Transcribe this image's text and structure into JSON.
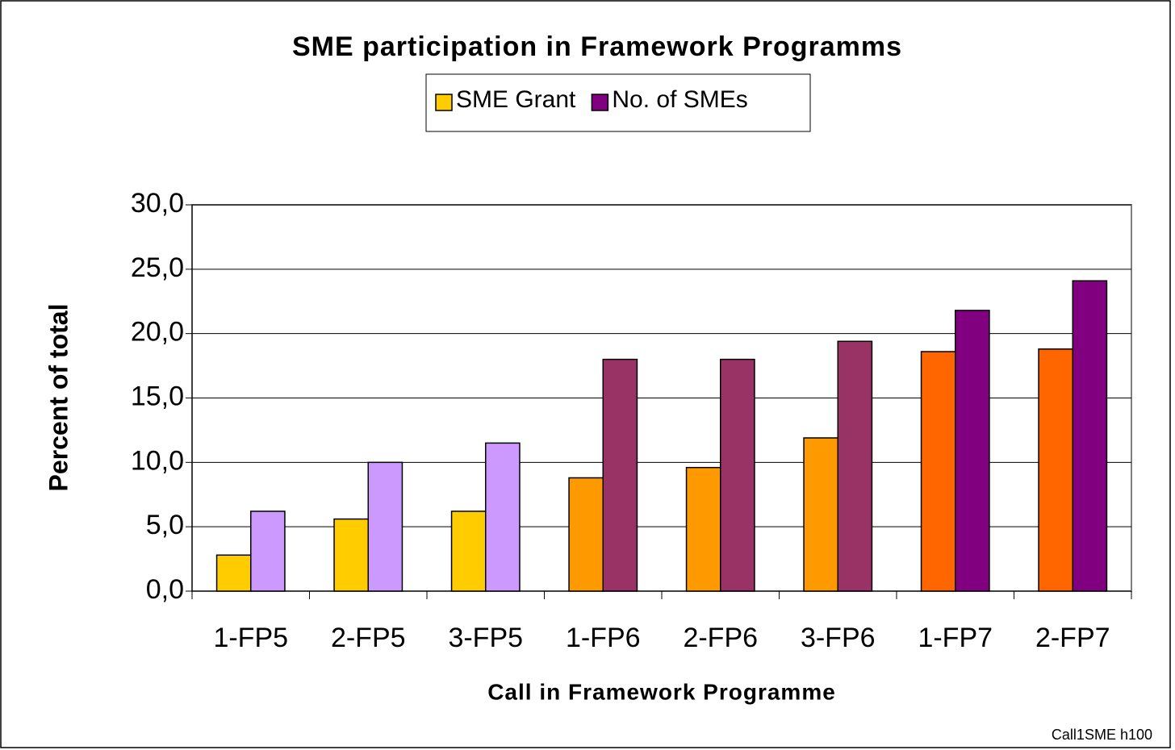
{
  "chart_data": {
    "type": "bar",
    "title": "SME participation in Framework Programms",
    "x_label": "Call in Framework Programme",
    "y_label": "Percent of total",
    "footnote": "Call1SME h100",
    "categories": [
      "1-FP5",
      "2-FP5",
      "3-FP5",
      "1-FP6",
      "2-FP6",
      "3-FP6",
      "1-FP7",
      "2-FP7"
    ],
    "series": [
      {
        "name": "SME Grant",
        "color": "#FFCC00",
        "colors": [
          "#FFCC00",
          "#FFCC00",
          "#FFCC00",
          "#FF9900",
          "#FF9900",
          "#FF9900",
          "#FF6600",
          "#FF6600"
        ],
        "values": [
          2.8,
          5.6,
          6.2,
          8.8,
          9.6,
          11.9,
          18.6,
          18.8
        ]
      },
      {
        "name": "No. of SMEs",
        "color": "#800080",
        "colors": [
          "#CC99FF",
          "#CC99FF",
          "#CC99FF",
          "#993366",
          "#993366",
          "#993366",
          "#800080",
          "#800080"
        ],
        "values": [
          6.2,
          10.0,
          11.5,
          18.0,
          18.0,
          19.4,
          21.8,
          24.1
        ]
      }
    ],
    "ylim": [
      0,
      30
    ],
    "yticks": [
      {
        "value": 0,
        "label": "0,0"
      },
      {
        "value": 5,
        "label": "5,0"
      },
      {
        "value": 10,
        "label": "10,0"
      },
      {
        "value": 15,
        "label": "15,0"
      },
      {
        "value": 20,
        "label": "20,0"
      },
      {
        "value": 25,
        "label": "25,0"
      },
      {
        "value": 30,
        "label": "30,0"
      }
    ],
    "grid": true,
    "legend": "top"
  }
}
